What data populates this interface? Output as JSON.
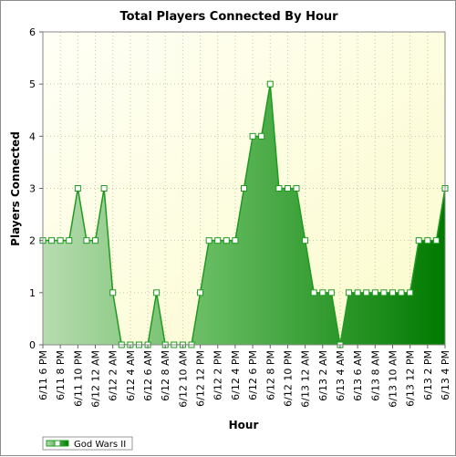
{
  "chart_data": {
    "type": "area",
    "title": "Total Players Connected By Hour",
    "xlabel": "Hour",
    "ylabel": "Players Connected",
    "ylim": [
      0,
      6
    ],
    "yticks": [
      0,
      1,
      2,
      3,
      4,
      5,
      6
    ],
    "grid": true,
    "legend_position": "bottom-left",
    "x_tick_labels": [
      "6/11 6 PM",
      "6/11 8 PM",
      "6/11 10 PM",
      "6/12 12 AM",
      "6/12 2 AM",
      "6/12 4 AM",
      "6/12 6 AM",
      "6/12 8 AM",
      "6/12 10 AM",
      "6/12 12 PM",
      "6/12 2 PM",
      "6/12 4 PM",
      "6/12 6 PM",
      "6/12 8 PM",
      "6/12 10 PM",
      "6/13 12 AM",
      "6/13 2 AM",
      "6/13 4 AM",
      "6/13 6 AM",
      "6/13 8 AM",
      "6/13 10 AM",
      "6/13 12 PM",
      "6/13 2 PM",
      "6/13 4 PM"
    ],
    "series": [
      {
        "name": "God Wars II",
        "color": "#1f9a1f",
        "values": [
          2,
          2,
          2,
          2,
          3,
          2,
          2,
          3,
          1,
          0,
          0,
          0,
          0,
          1,
          0,
          0,
          0,
          0,
          1,
          2,
          2,
          2,
          2,
          3,
          4,
          4,
          5,
          3,
          3,
          3,
          2,
          1,
          1,
          1,
          0,
          1,
          1,
          1,
          1,
          1,
          1,
          1,
          1,
          2,
          2,
          2,
          3
        ]
      }
    ]
  }
}
